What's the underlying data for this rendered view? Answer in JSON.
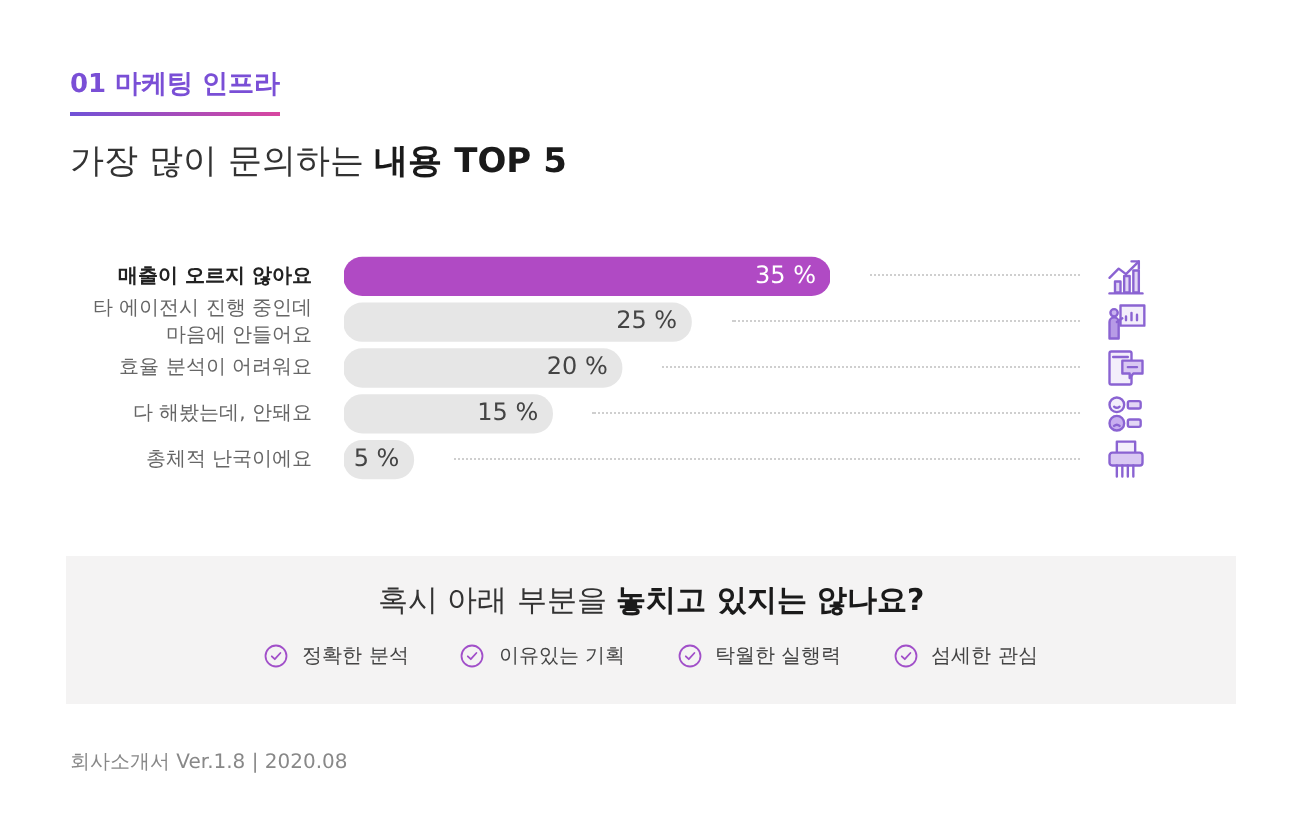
{
  "chart_data": {
    "type": "bar",
    "orientation": "horizontal",
    "title": "가장 많이 문의하는 내용 TOP 5",
    "categories": [
      "매출이 오르지 않아요",
      "타 에이전시 진행 중인데 마음에 안들어요",
      "효율 분석이 어려워요",
      "다 해봤는데, 안돼요",
      "총체적 난국이에요"
    ],
    "values": [
      35,
      25,
      20,
      15,
      5
    ],
    "colors": [
      "#b04ac4",
      "#e6e6e6",
      "#e6e6e6",
      "#e6e6e6",
      "#e6e6e6"
    ],
    "value_labels": [
      "35 %",
      "25 %",
      "20 %",
      "15 %",
      "5 %"
    ],
    "tick_labels": "y",
    "grid": false,
    "legend": false,
    "annotations": [
      "01 마케팅 인프라",
      "혹시 아래 부분을 놓치고 있지는 않나요?",
      "정확한 분석",
      "이유있는 기획",
      "탁월한 실행력",
      "섬세한 관심",
      "회사소개서 Ver.1.8 | 2020.08"
    ]
  }
}
